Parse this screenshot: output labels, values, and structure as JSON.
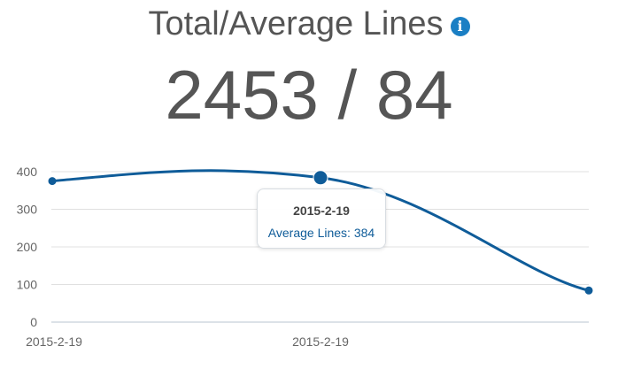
{
  "header": {
    "title": "Total/Average Lines",
    "info_icon": "info-icon",
    "value": "2453 / 84"
  },
  "chart_data": {
    "type": "line",
    "categories": [
      "2015-2-19",
      "2015-2-19",
      "2015-2-19"
    ],
    "xtick_labels": [
      "2015-2-19",
      "2015-2-19"
    ],
    "series": [
      {
        "values": [
          375,
          384,
          84
        ],
        "color": "#0f5c99"
      }
    ],
    "ylim": [
      0,
      400
    ],
    "yticks": [
      "400",
      "300",
      "200",
      "100",
      "0"
    ],
    "grid": true,
    "highlighted_index": 1
  },
  "tooltip": {
    "title": "2015-2-19",
    "series_label": "Average Lines",
    "value": "384",
    "text": "Average Lines: 384"
  },
  "colors": {
    "line": "#0f5c99",
    "accent": "#1b7fc4",
    "text": "#555555",
    "grid": "#e0e0e0"
  }
}
